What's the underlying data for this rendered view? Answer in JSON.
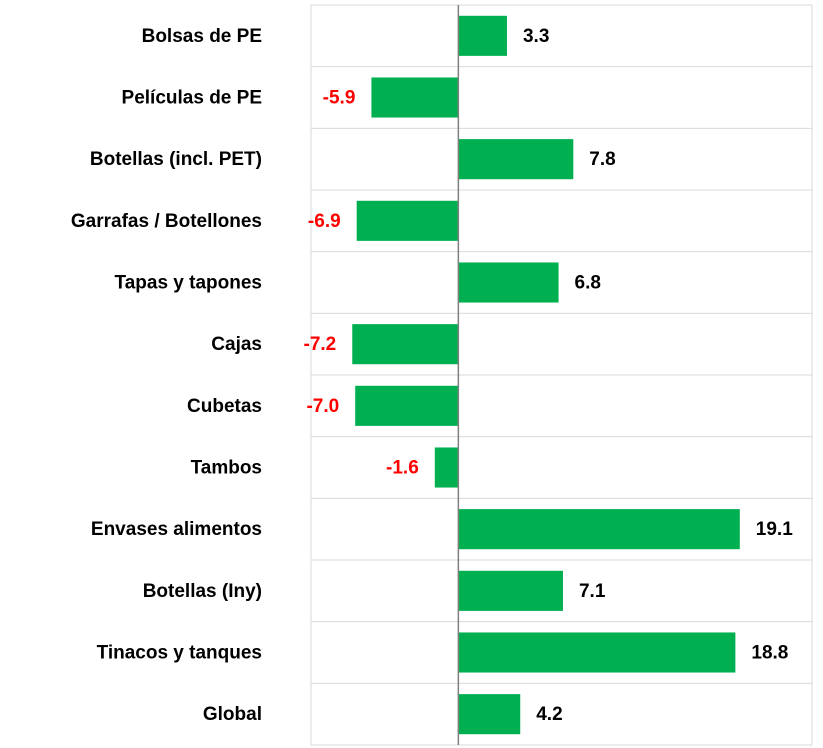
{
  "chart_data": {
    "type": "hbar",
    "categories": [
      "Bolsas de PE",
      "Películas de PE",
      "Botellas (incl. PET)",
      "Garrafas / Botellones",
      "Tapas y tapones",
      "Cajas",
      "Cubetas",
      "Tambos",
      "Envases alimentos",
      "Botellas (Iny)",
      "Tinacos y tanques",
      "Global"
    ],
    "values": [
      3.3,
      -5.9,
      7.8,
      -6.9,
      6.8,
      -7.2,
      -7.0,
      -1.6,
      19.1,
      7.1,
      18.8,
      4.2
    ],
    "value_labels": [
      "3.3",
      "-5.9",
      "7.8",
      "-6.9",
      "6.8",
      "-7.2",
      "-7.0",
      "-1.6",
      "19.1",
      "7.1",
      "18.8",
      "4.2"
    ],
    "color": "#00b050",
    "label_color": "#000000",
    "negative_label_color": "#ff0000",
    "xlim": [
      -10,
      24
    ]
  }
}
